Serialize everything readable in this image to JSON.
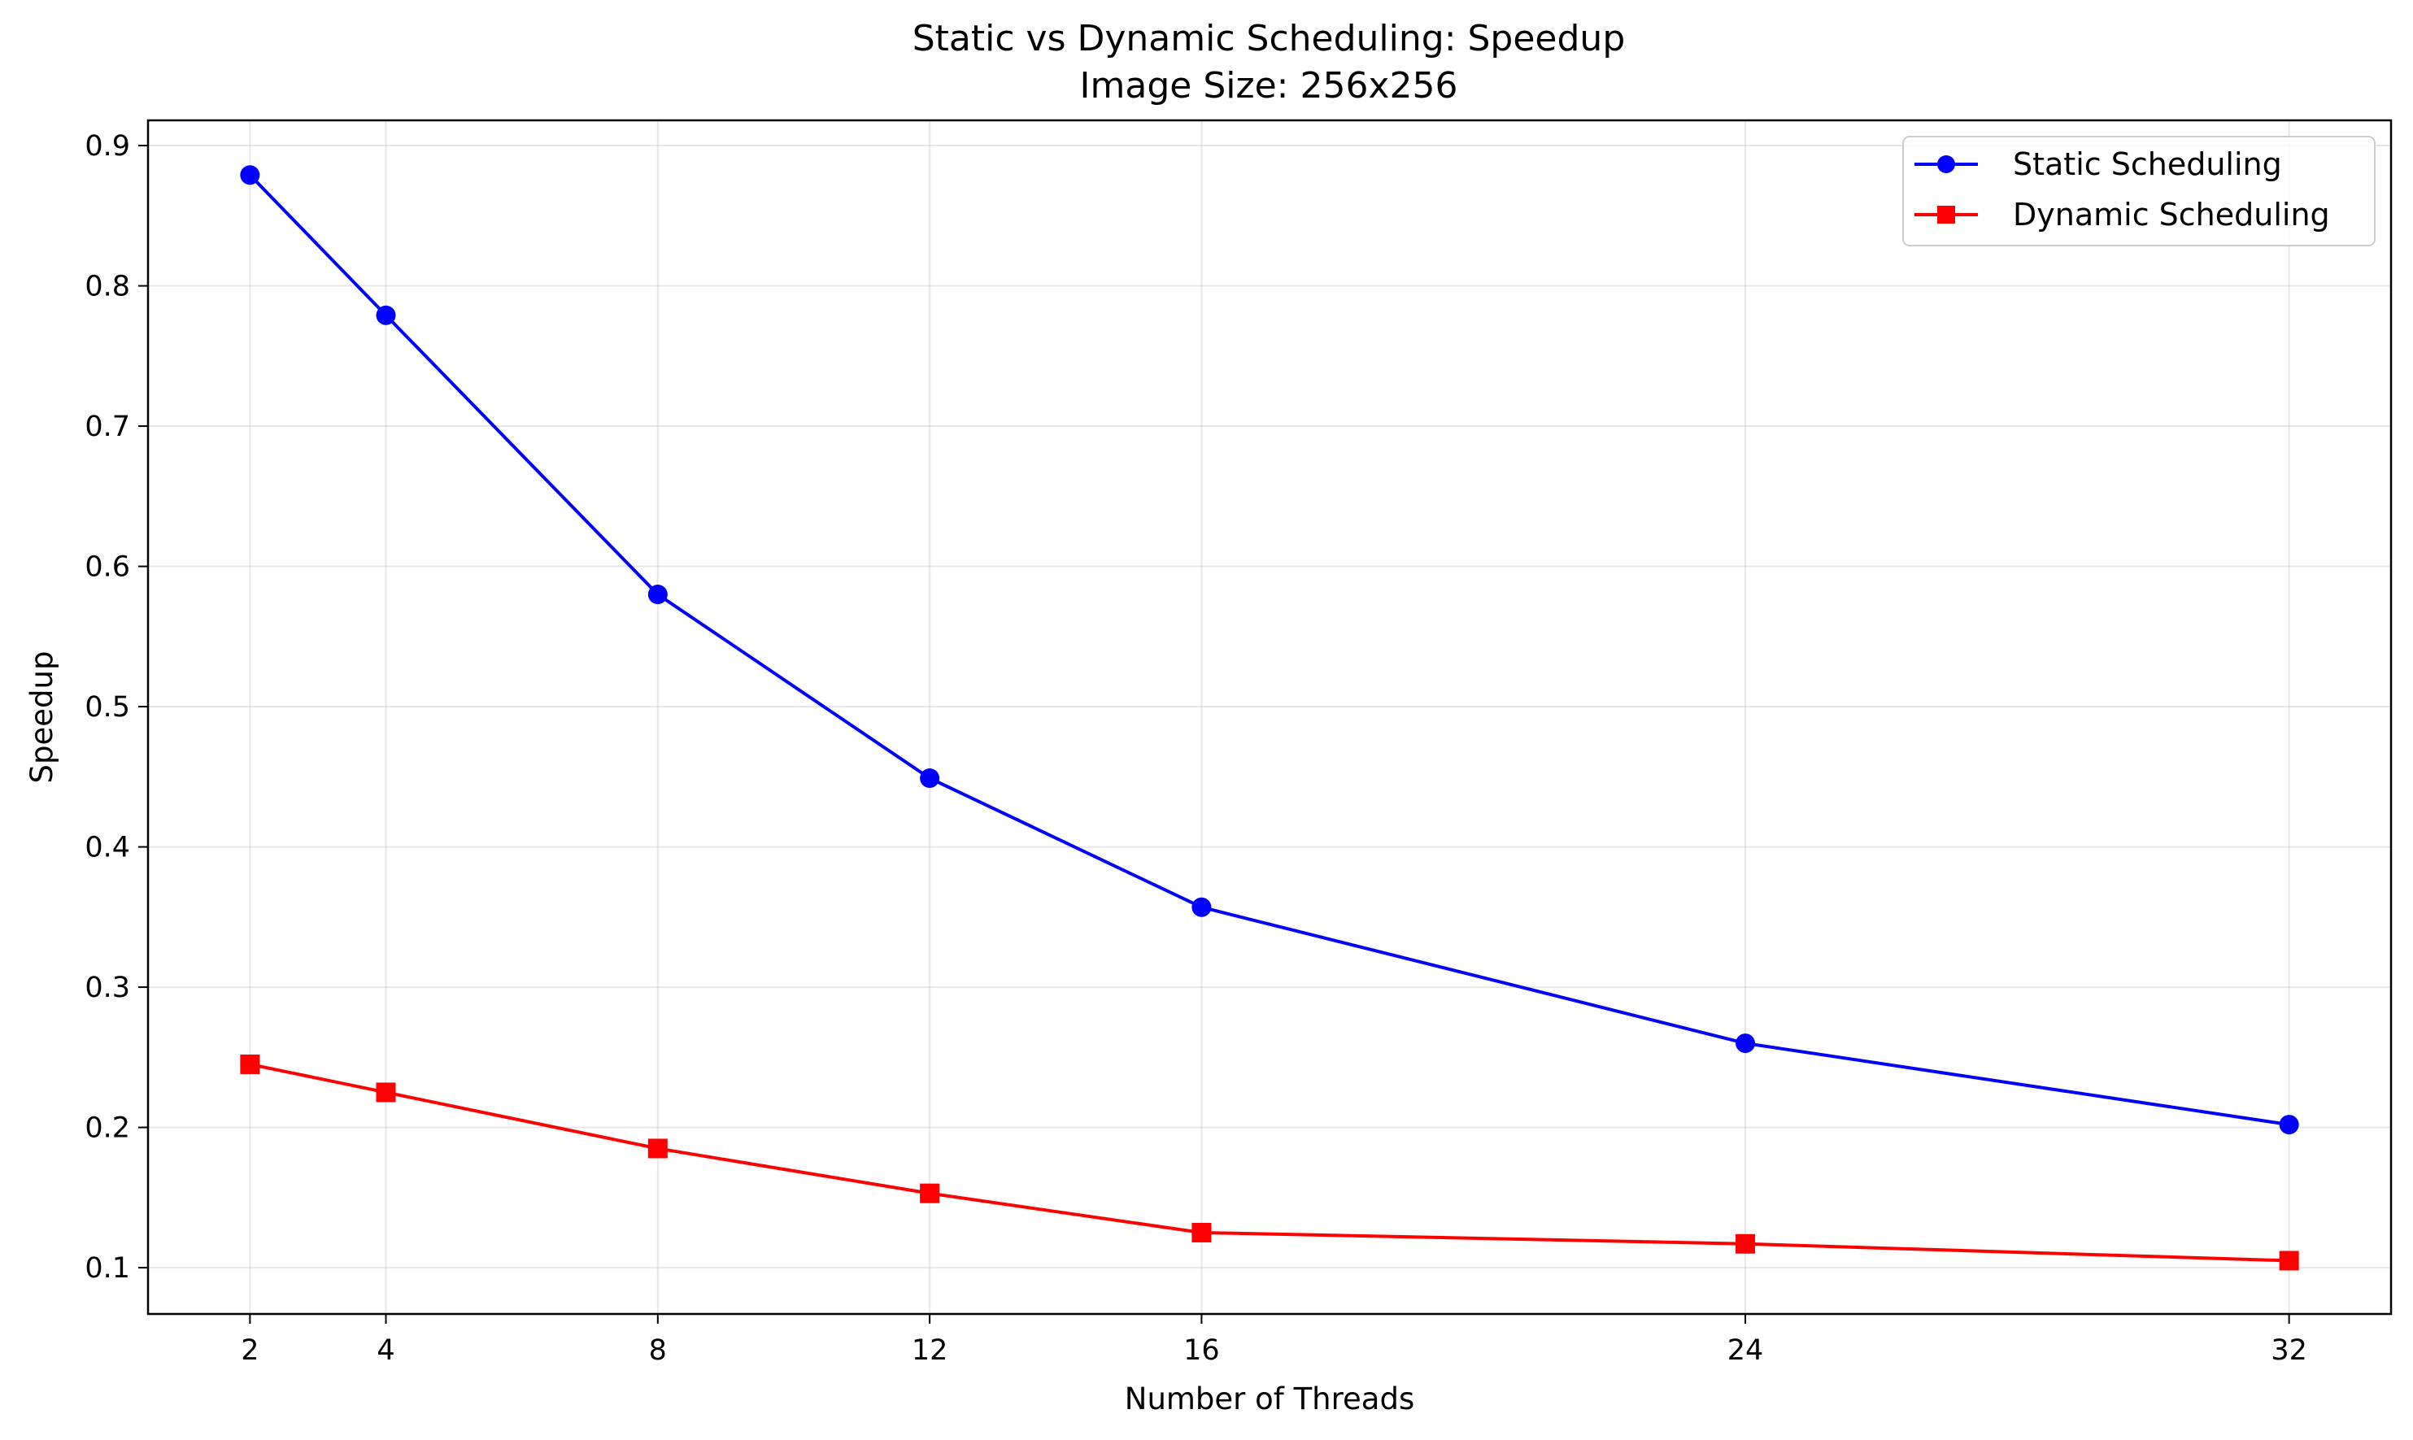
{
  "chart_data": {
    "type": "line",
    "title": "Static vs Dynamic Scheduling: Speedup",
    "subtitle": "Image Size: 256x256",
    "xlabel": "Number of Threads",
    "ylabel": "Speedup",
    "x": [
      2,
      4,
      8,
      12,
      16,
      24,
      32
    ],
    "xticks": [
      "2",
      "4",
      "8",
      "12",
      "16",
      "24",
      "32"
    ],
    "yticks": [
      "0.1",
      "0.2",
      "0.3",
      "0.4",
      "0.5",
      "0.6",
      "0.7",
      "0.8",
      "0.9"
    ],
    "xlim": [
      0.5,
      33.5
    ],
    "ylim": [
      0.067,
      0.918
    ],
    "grid": true,
    "legend_position": "top-right",
    "series": [
      {
        "name": "Static Scheduling",
        "color": "#0000ff",
        "marker": "circle",
        "values": [
          0.879,
          0.779,
          0.58,
          0.449,
          0.357,
          0.26,
          0.202
        ]
      },
      {
        "name": "Dynamic Scheduling",
        "color": "#ff0000",
        "marker": "square",
        "values": [
          0.245,
          0.225,
          0.185,
          0.153,
          0.125,
          0.117,
          0.105
        ]
      }
    ]
  }
}
